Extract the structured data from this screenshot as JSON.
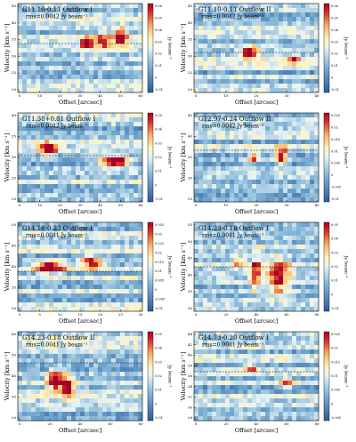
{
  "figure": {
    "xlabel": "Offset [arcsec]",
    "ylabel": "Velocity [km s⁻¹]",
    "cbar_label": "Jy beam⁻¹",
    "panels": [
      {
        "title": "G11.10-0.11 Outflow I",
        "rms": "rms=0.0042 Jy beam⁻¹",
        "xticks": [
          0,
          10,
          20,
          30,
          40,
          50,
          60
        ],
        "yticks": [
          20,
          25,
          30,
          35,
          40,
          45
        ],
        "cbar_ticks": [
          0.06,
          0.05,
          0.04,
          0.03,
          0.02,
          0.01,
          0.0,
          -0.01
        ]
      },
      {
        "title": "G11.10-0.11 Outflow II",
        "rms": "rms=0.0042 Jy beam⁻¹",
        "xticks": [
          0,
          10,
          20,
          30,
          40
        ],
        "yticks": [
          20,
          25,
          30,
          35,
          40,
          45
        ],
        "cbar_ticks": [
          0.06,
          0.05,
          0.04,
          0.03,
          0.02,
          0.01,
          0.0,
          -0.01
        ]
      },
      {
        "title": "G11.38+0.81 Outflow I",
        "rms": "rms=0.0042 Jy beam⁻¹",
        "xticks": [
          0,
          10,
          20,
          30,
          40,
          50,
          60
        ],
        "yticks": [
          20,
          25,
          30,
          35,
          40
        ],
        "cbar_ticks": [
          0.05,
          0.04,
          0.03,
          0.02,
          0.01,
          0.0,
          -0.01
        ]
      },
      {
        "title": "G12.97-0.24 Outflow II",
        "rms": "rms=0.0042 Jy beam⁻¹",
        "xticks": [
          0,
          10,
          20,
          30,
          40
        ],
        "yticks": [
          25,
          30,
          35,
          40,
          45
        ],
        "cbar_ticks": [
          0.025,
          0.02,
          0.015,
          0.01,
          0.005,
          0.0,
          -0.005,
          -0.01
        ]
      },
      {
        "title": "G14.18-0.23 Outflow I",
        "rms": "rms=0.0041 Jy beam⁻¹",
        "xticks": [
          0,
          5,
          10,
          15,
          20,
          25,
          30
        ],
        "yticks": [
          30,
          35,
          40,
          45,
          50
        ],
        "cbar_ticks": [
          0.035,
          0.03,
          0.025,
          0.02,
          0.015,
          0.01,
          0.005,
          0.0,
          -0.005,
          -0.01
        ]
      },
      {
        "title": "G14.23-0.18 Outflow I",
        "rms": "rms=0.0041 Jy beam⁻¹",
        "xticks": [
          0,
          20,
          40,
          60,
          80
        ],
        "yticks": [
          30,
          35,
          40,
          45,
          50,
          55
        ],
        "cbar_ticks": [
          0.05,
          0.04,
          0.03,
          0.02,
          0.01,
          0.0,
          -0.01
        ]
      },
      {
        "title": "G14.23-0.18 Outflow II",
        "rms": "rms=0.0041 Jy beam⁻¹",
        "xticks": [
          0,
          20,
          40,
          60,
          80
        ],
        "yticks": [
          20,
          30,
          40,
          50,
          60
        ],
        "cbar_ticks": [
          0.05,
          0.04,
          0.03,
          0.02,
          0.01,
          0.0,
          -0.01
        ]
      },
      {
        "title": "G14.73-0.20 Outflow I",
        "rms": "rms=0.0041 Jy beam⁻¹",
        "xticks": [
          0,
          20,
          40,
          60,
          80
        ],
        "yticks": [
          28,
          30,
          32,
          34,
          36,
          38,
          40,
          42,
          44
        ],
        "cbar_ticks": [
          0.025,
          0.02,
          0.015,
          0.01,
          0.005,
          0.0,
          -0.005
        ]
      }
    ]
  }
}
